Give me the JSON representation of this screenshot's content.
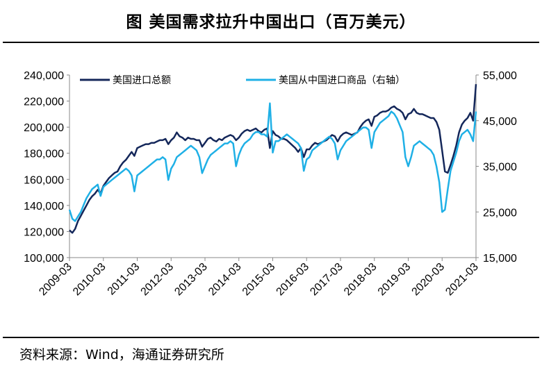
{
  "title": "图  美国需求拉升中国出口（百万美元）",
  "source": "资料来源：Wind，海通证券研究所",
  "chart_data": {
    "type": "line",
    "title": "图  美国需求拉升中国出口（百万美元）",
    "x": [
      "2009-03",
      "2009-04",
      "2009-05",
      "2009-06",
      "2009-07",
      "2009-08",
      "2009-09",
      "2009-10",
      "2009-11",
      "2009-12",
      "2010-01",
      "2010-02",
      "2010-03",
      "2010-04",
      "2010-05",
      "2010-06",
      "2010-07",
      "2010-08",
      "2010-09",
      "2010-10",
      "2010-11",
      "2010-12",
      "2011-01",
      "2011-02",
      "2011-03",
      "2011-04",
      "2011-05",
      "2011-06",
      "2011-07",
      "2011-08",
      "2011-09",
      "2011-10",
      "2011-11",
      "2011-12",
      "2012-01",
      "2012-02",
      "2012-03",
      "2012-04",
      "2012-05",
      "2012-06",
      "2012-07",
      "2012-08",
      "2012-09",
      "2012-10",
      "2012-11",
      "2012-12",
      "2013-01",
      "2013-02",
      "2013-03",
      "2013-04",
      "2013-05",
      "2013-06",
      "2013-07",
      "2013-08",
      "2013-09",
      "2013-10",
      "2013-11",
      "2013-12",
      "2014-01",
      "2014-02",
      "2014-03",
      "2014-04",
      "2014-05",
      "2014-06",
      "2014-07",
      "2014-08",
      "2014-09",
      "2014-10",
      "2014-11",
      "2014-12",
      "2015-01",
      "2015-02",
      "2015-03",
      "2015-04",
      "2015-05",
      "2015-06",
      "2015-07",
      "2015-08",
      "2015-09",
      "2015-10",
      "2015-11",
      "2015-12",
      "2016-01",
      "2016-02",
      "2016-03",
      "2016-04",
      "2016-05",
      "2016-06",
      "2016-07",
      "2016-08",
      "2016-09",
      "2016-10",
      "2016-11",
      "2016-12",
      "2017-01",
      "2017-02",
      "2017-03",
      "2017-04",
      "2017-05",
      "2017-06",
      "2017-07",
      "2017-08",
      "2017-09",
      "2017-10",
      "2017-11",
      "2017-12",
      "2018-01",
      "2018-02",
      "2018-03",
      "2018-04",
      "2018-05",
      "2018-06",
      "2018-07",
      "2018-08",
      "2018-09",
      "2018-10",
      "2018-11",
      "2018-12",
      "2019-01",
      "2019-02",
      "2019-03",
      "2019-04",
      "2019-05",
      "2019-06",
      "2019-07",
      "2019-08",
      "2019-09",
      "2019-10",
      "2019-11",
      "2019-12",
      "2020-01",
      "2020-02",
      "2020-03",
      "2020-04",
      "2020-05",
      "2020-06",
      "2020-07",
      "2020-08",
      "2020-09",
      "2020-10",
      "2020-11",
      "2020-12",
      "2021-01",
      "2021-02",
      "2021-03"
    ],
    "x_tick_labels": [
      "2009-03",
      "2010-03",
      "2011-03",
      "2012-03",
      "2013-03",
      "2014-03",
      "2015-03",
      "2016-03",
      "2017-03",
      "2018-03",
      "2019-03",
      "2020-03",
      "2021-03"
    ],
    "left_axis": {
      "ylim": [
        100000,
        240000
      ],
      "ticks": [
        "100,000",
        "120,000",
        "140,000",
        "160,000",
        "180,000",
        "200,000",
        "220,000",
        "240,000"
      ]
    },
    "right_axis": {
      "ylim": [
        15000,
        55000
      ],
      "ticks": [
        "15,000",
        "25,000",
        "35,000",
        "45,000",
        "55,000"
      ]
    },
    "series": [
      {
        "name": "美国进口总额",
        "axis": "left",
        "color": "#14275a",
        "values": [
          121000,
          119000,
          122000,
          128000,
          132000,
          136000,
          140000,
          144000,
          147000,
          149000,
          152000,
          149000,
          155000,
          158000,
          161000,
          163000,
          165000,
          166000,
          170000,
          173000,
          175000,
          178000,
          181000,
          178000,
          184000,
          185000,
          186000,
          187000,
          187000,
          188000,
          188000,
          189000,
          190000,
          190000,
          191000,
          187000,
          190000,
          192000,
          196000,
          193000,
          192000,
          190000,
          192000,
          191000,
          191000,
          190000,
          190000,
          185000,
          188000,
          191000,
          192000,
          190000,
          189000,
          191000,
          190000,
          192000,
          193000,
          194000,
          193000,
          190000,
          192000,
          195000,
          197000,
          198000,
          197000,
          198000,
          199000,
          197000,
          196000,
          198000,
          199000,
          184000,
          197000,
          194000,
          193000,
          191000,
          191000,
          190000,
          188000,
          186000,
          184000,
          181000,
          184000,
          177000,
          183000,
          183000,
          186000,
          188000,
          187000,
          188000,
          189000,
          190000,
          192000,
          194000,
          193000,
          189000,
          193000,
          195000,
          196000,
          195000,
          194000,
          195000,
          196000,
          200000,
          203000,
          205000,
          206000,
          201000,
          208000,
          209000,
          211000,
          212000,
          212000,
          213000,
          215000,
          216000,
          214000,
          213000,
          211000,
          206000,
          210000,
          211000,
          214000,
          211000,
          210000,
          210000,
          209000,
          208000,
          207000,
          207000,
          204000,
          198000,
          182000,
          166000,
          165000,
          171000,
          178000,
          186000,
          196000,
          202000,
          205000,
          207000,
          211000,
          205000,
          233000
        ]
      },
      {
        "name": "美国从中国进口商品（右轴）",
        "axis": "right",
        "color": "#1fb0e6",
        "values": [
          25500,
          23500,
          23000,
          24000,
          25000,
          26500,
          28000,
          29000,
          30000,
          30500,
          31000,
          28500,
          30500,
          31000,
          31500,
          32000,
          32500,
          33000,
          33500,
          34000,
          34500,
          34000,
          33000,
          29500,
          33000,
          33500,
          34000,
          34500,
          35000,
          35500,
          36000,
          36500,
          36500,
          37000,
          36500,
          32000,
          34500,
          35500,
          37000,
          37500,
          38000,
          38500,
          39000,
          39500,
          39000,
          38500,
          37000,
          33500,
          35000,
          36500,
          37500,
          38000,
          38500,
          39000,
          39500,
          40000,
          40000,
          40500,
          40000,
          35000,
          37500,
          39000,
          40000,
          40500,
          41000,
          42000,
          42500,
          42500,
          42000,
          42000,
          41500,
          48800,
          38000,
          40500,
          40500,
          41000,
          41500,
          42000,
          41500,
          41000,
          40500,
          40000,
          39000,
          34000,
          36500,
          37000,
          38500,
          39000,
          39500,
          40000,
          40500,
          41000,
          41500,
          41000,
          40000,
          36500,
          38500,
          39500,
          40500,
          41000,
          41500,
          42000,
          42500,
          43000,
          43500,
          43500,
          43000,
          39000,
          42500,
          43500,
          44500,
          45000,
          45500,
          46000,
          47000,
          46500,
          45500,
          44000,
          42500,
          37000,
          35000,
          37000,
          39500,
          40000,
          40500,
          40000,
          39500,
          39000,
          38500,
          37500,
          35000,
          31500,
          25000,
          25500,
          30000,
          34000,
          36000,
          38000,
          40500,
          42000,
          42500,
          43000,
          42000,
          40500,
          47000
        ]
      }
    ],
    "legend": [
      "美国进口总额",
      "美国从中国进口商品（右轴）"
    ],
    "legend_position": "top",
    "grid": false
  }
}
